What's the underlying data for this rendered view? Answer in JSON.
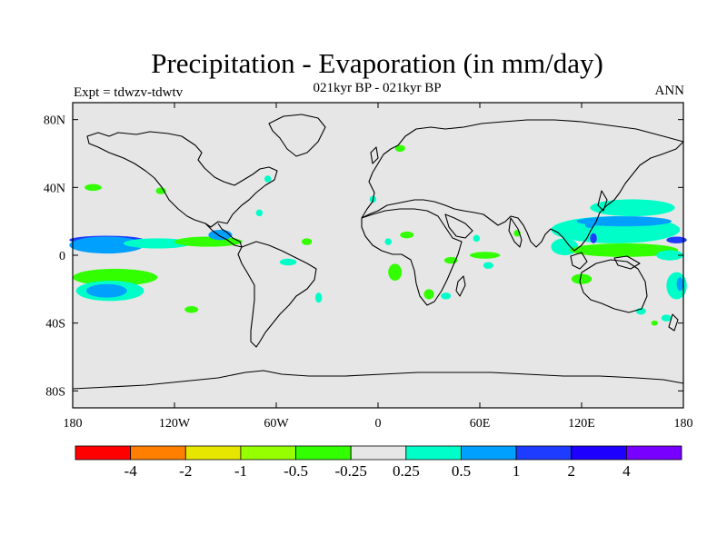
{
  "title": "Precipitation - Evaporation (in mm/day)",
  "subtitle": "021kyr BP - 021kyr BP",
  "left_label": "Expt = tdwzv-tdwtv",
  "right_label": "ANN",
  "colors": {
    "land_sea_background": "#e6e6e6",
    "coastline": "#000000"
  },
  "map": {
    "projection": "cylindrical equidistant",
    "lon_range": [
      -180,
      180
    ],
    "lat_range": [
      -90,
      90
    ],
    "x_ticks": [
      {
        "value": -180,
        "label": "180"
      },
      {
        "value": -120,
        "label": "120W"
      },
      {
        "value": -60,
        "label": "60W"
      },
      {
        "value": 0,
        "label": "0"
      },
      {
        "value": 60,
        "label": "60E"
      },
      {
        "value": 120,
        "label": "120E"
      },
      {
        "value": 180,
        "label": "180"
      }
    ],
    "y_ticks": [
      {
        "value": 80,
        "label": "80N"
      },
      {
        "value": 40,
        "label": "40N"
      },
      {
        "value": 0,
        "label": "0"
      },
      {
        "value": -40,
        "label": "40S"
      },
      {
        "value": -80,
        "label": "80S"
      }
    ],
    "anomaly_regions": [
      {
        "lon": -160,
        "lat": 9,
        "color": "#1e3cff",
        "rx": 22,
        "ry": 2.5
      },
      {
        "lon": -160,
        "lat": 6,
        "color": "#00a0ff",
        "rx": 22,
        "ry": 5
      },
      {
        "lon": -130,
        "lat": 7,
        "color": "#00ffc8",
        "rx": 20,
        "ry": 3
      },
      {
        "lon": -100,
        "lat": 8,
        "color": "#32ff00",
        "rx": 20,
        "ry": 3
      },
      {
        "lon": -93,
        "lat": 12,
        "color": "#00a0ff",
        "rx": 7,
        "ry": 3
      },
      {
        "lon": -155,
        "lat": -13,
        "color": "#32ff00",
        "rx": 25,
        "ry": 5
      },
      {
        "lon": -158,
        "lat": -21,
        "color": "#00ffc8",
        "rx": 20,
        "ry": 6
      },
      {
        "lon": -160,
        "lat": -21,
        "color": "#00a0ff",
        "rx": 12,
        "ry": 4
      },
      {
        "lon": -110,
        "lat": -32,
        "color": "#32ff00",
        "rx": 4,
        "ry": 2
      },
      {
        "lon": -53,
        "lat": -4,
        "color": "#00ffc8",
        "rx": 5,
        "ry": 2
      },
      {
        "lon": -42,
        "lat": 8,
        "color": "#32ff00",
        "rx": 3,
        "ry": 2
      },
      {
        "lon": -35,
        "lat": -25,
        "color": "#00ffc8",
        "rx": 2,
        "ry": 3
      },
      {
        "lon": -70,
        "lat": 25,
        "color": "#00ffc8",
        "rx": 2,
        "ry": 2
      },
      {
        "lon": -65,
        "lat": 45,
        "color": "#00ffc8",
        "rx": 2,
        "ry": 2
      },
      {
        "lon": -168,
        "lat": 40,
        "color": "#32ff00",
        "rx": 5,
        "ry": 2
      },
      {
        "lon": -128,
        "lat": 38,
        "color": "#32ff00",
        "rx": 3,
        "ry": 2
      },
      {
        "lon": 13,
        "lat": 63,
        "color": "#32ff00",
        "rx": 3,
        "ry": 2
      },
      {
        "lon": 17,
        "lat": 12,
        "color": "#32ff00",
        "rx": 4,
        "ry": 2
      },
      {
        "lon": -3,
        "lat": 33,
        "color": "#00ffc8",
        "rx": 2,
        "ry": 2
      },
      {
        "lon": 6,
        "lat": 8,
        "color": "#00ffc8",
        "rx": 2,
        "ry": 2
      },
      {
        "lon": 10,
        "lat": -10,
        "color": "#32ff00",
        "rx": 4,
        "ry": 5
      },
      {
        "lon": 30,
        "lat": -23,
        "color": "#32ff00",
        "rx": 3,
        "ry": 3
      },
      {
        "lon": 40,
        "lat": -24,
        "color": "#00ffc8",
        "rx": 3,
        "ry": 2
      },
      {
        "lon": 43,
        "lat": -3,
        "color": "#32ff00",
        "rx": 4,
        "ry": 2
      },
      {
        "lon": 63,
        "lat": 0,
        "color": "#32ff00",
        "rx": 9,
        "ry": 2
      },
      {
        "lon": 65,
        "lat": -6,
        "color": "#00ffc8",
        "rx": 3,
        "ry": 2
      },
      {
        "lon": 58,
        "lat": 10,
        "color": "#00ffc8",
        "rx": 2,
        "ry": 2
      },
      {
        "lon": 82,
        "lat": 13,
        "color": "#32ff00",
        "rx": 2,
        "ry": 2
      },
      {
        "lon": 120,
        "lat": -14,
        "color": "#32ff00",
        "rx": 6,
        "ry": 3
      },
      {
        "lon": 110,
        "lat": 5,
        "color": "#00ffc8",
        "rx": 8,
        "ry": 5
      },
      {
        "lon": 112,
        "lat": 16,
        "color": "#32ff00",
        "rx": 5,
        "ry": 4
      },
      {
        "lon": 140,
        "lat": 15,
        "color": "#00ffc8",
        "rx": 38,
        "ry": 8
      },
      {
        "lon": 145,
        "lat": 20,
        "color": "#00a0ff",
        "rx": 28,
        "ry": 3
      },
      {
        "lon": 150,
        "lat": 28,
        "color": "#00ffc8",
        "rx": 25,
        "ry": 5
      },
      {
        "lon": 145,
        "lat": 3,
        "color": "#32ff00",
        "rx": 32,
        "ry": 4
      },
      {
        "lon": 172,
        "lat": 0,
        "color": "#00ffc8",
        "rx": 8,
        "ry": 3
      },
      {
        "lon": 176,
        "lat": 9,
        "color": "#1e3cff",
        "rx": 6,
        "ry": 2
      },
      {
        "lon": 176,
        "lat": -18,
        "color": "#00ffc8",
        "rx": 6,
        "ry": 8
      },
      {
        "lon": 178,
        "lat": -17,
        "color": "#00a0ff",
        "rx": 2,
        "ry": 4
      },
      {
        "lon": 155,
        "lat": -33,
        "color": "#00ffc8",
        "rx": 3,
        "ry": 2
      },
      {
        "lon": 170,
        "lat": -37,
        "color": "#00ffc8",
        "rx": 3,
        "ry": 2
      },
      {
        "lon": 163,
        "lat": -40,
        "color": "#32ff00",
        "rx": 2,
        "ry": 1.5
      },
      {
        "lon": 125,
        "lat": 18,
        "color": "#00a0ff",
        "rx": 3,
        "ry": 2
      },
      {
        "lon": 127,
        "lat": 10,
        "color": "#1e3cff",
        "rx": 2,
        "ry": 3
      }
    ]
  },
  "colorbar": {
    "colors": [
      "#ff0000",
      "#ff8000",
      "#e6e600",
      "#96ff00",
      "#32ff00",
      "#e6e6e6",
      "#00ffc8",
      "#00a0ff",
      "#1e3cff",
      "#1e00ff",
      "#7800ff"
    ],
    "labels": [
      "-4",
      "-2",
      "-1",
      "-0.5",
      "-0.25",
      "0.25",
      "0.5",
      "1",
      "2",
      "4"
    ]
  }
}
